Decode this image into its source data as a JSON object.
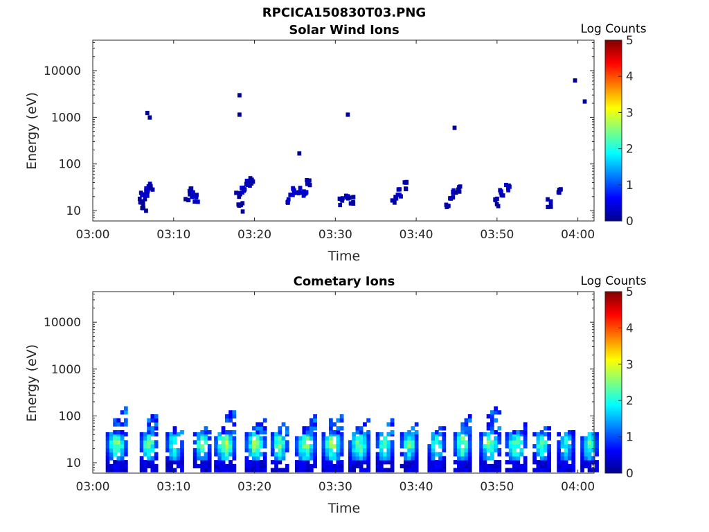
{
  "figure_title": "RPCICA150830T03.PNG",
  "chart_data": [
    {
      "type": "heatmap",
      "title": "Solar Wind Ions",
      "xlabel": "Time",
      "ylabel": "Energy (eV)",
      "xticks": [
        "03:00",
        "03:10",
        "03:20",
        "03:30",
        "03:40",
        "03:50",
        "04:00"
      ],
      "xlim_minutes": [
        0,
        62
      ],
      "yticks": [
        "10",
        "100",
        "1000",
        "10000"
      ],
      "ylim": [
        6,
        45000
      ],
      "yscale": "log",
      "colorbar": {
        "label": "Log Counts",
        "ticks": [
          "0",
          "1",
          "2",
          "3",
          "4",
          "5"
        ],
        "range": [
          0,
          5
        ],
        "colormap": "jet"
      },
      "points": [
        {
          "t": 5.9,
          "e": 20,
          "v": 0.3
        },
        {
          "t": 6.2,
          "e": 25,
          "v": 0.4
        },
        {
          "t": 6.5,
          "e": 30,
          "v": 0.3
        },
        {
          "t": 6.8,
          "e": 35,
          "v": 0.2
        },
        {
          "t": 5.6,
          "e": 15,
          "v": 0.2
        },
        {
          "t": 6.0,
          "e": 12,
          "v": 0.1
        },
        {
          "t": 11.4,
          "e": 20,
          "v": 0.2
        },
        {
          "t": 11.9,
          "e": 25,
          "v": 0.3
        },
        {
          "t": 12.4,
          "e": 18,
          "v": 0.3
        },
        {
          "t": 17.6,
          "e": 20,
          "v": 0.2
        },
        {
          "t": 18.2,
          "e": 28,
          "v": 0.4
        },
        {
          "t": 18.8,
          "e": 35,
          "v": 0.3
        },
        {
          "t": 19.3,
          "e": 45,
          "v": 0.2
        },
        {
          "t": 17.9,
          "e": 12,
          "v": 0.1
        },
        {
          "t": 24.0,
          "e": 18,
          "v": 0.3
        },
        {
          "t": 24.6,
          "e": 25,
          "v": 0.4
        },
        {
          "t": 25.2,
          "e": 30,
          "v": 0.4
        },
        {
          "t": 25.8,
          "e": 22,
          "v": 0.3
        },
        {
          "t": 26.2,
          "e": 38,
          "v": 0.2
        },
        {
          "t": 30.4,
          "e": 15,
          "v": 0.2
        },
        {
          "t": 31.0,
          "e": 22,
          "v": 0.3
        },
        {
          "t": 31.6,
          "e": 18,
          "v": 0.2
        },
        {
          "t": 36.9,
          "e": 18,
          "v": 0.2
        },
        {
          "t": 37.5,
          "e": 25,
          "v": 0.3
        },
        {
          "t": 38.2,
          "e": 35,
          "v": 0.2
        },
        {
          "t": 43.6,
          "e": 15,
          "v": 0.2
        },
        {
          "t": 44.2,
          "e": 22,
          "v": 0.3
        },
        {
          "t": 44.8,
          "e": 30,
          "v": 0.2
        },
        {
          "t": 49.7,
          "e": 15,
          "v": 0.2
        },
        {
          "t": 50.3,
          "e": 22,
          "v": 0.3
        },
        {
          "t": 50.9,
          "e": 30,
          "v": 0.3
        },
        {
          "t": 56.1,
          "e": 15,
          "v": 0.2
        },
        {
          "t": 57.3,
          "e": 25,
          "v": 0.2
        },
        {
          "t": 6.5,
          "e": 1250,
          "v": 0.1
        },
        {
          "t": 6.8,
          "e": 1000,
          "v": 0.1
        },
        {
          "t": 17.9,
          "e": 3000,
          "v": 0.1
        },
        {
          "t": 17.9,
          "e": 1150,
          "v": 0.1
        },
        {
          "t": 25.3,
          "e": 170,
          "v": 0.1
        },
        {
          "t": 31.3,
          "e": 1150,
          "v": 0.1
        },
        {
          "t": 44.5,
          "e": 600,
          "v": 0.1
        },
        {
          "t": 59.4,
          "e": 6200,
          "v": 0.1
        },
        {
          "t": 60.6,
          "e": 2200,
          "v": 0.1
        }
      ]
    },
    {
      "type": "heatmap",
      "title": "Cometary Ions",
      "xlabel": "Time",
      "ylabel": "Energy (eV)",
      "xticks": [
        "03:00",
        "03:10",
        "03:20",
        "03:30",
        "03:40",
        "03:50",
        "04:00"
      ],
      "xlim_minutes": [
        0,
        62
      ],
      "yticks": [
        "10",
        "100",
        "1000",
        "10000"
      ],
      "ylim": [
        6,
        45000
      ],
      "yscale": "log",
      "colorbar": {
        "label": "Log Counts",
        "ticks": [
          "0",
          "1",
          "2",
          "3",
          "4",
          "5"
        ],
        "range": [
          0,
          5
        ],
        "colormap": "jet"
      },
      "bursts": [
        {
          "t": 1.6,
          "w": 2.6,
          "peak": 1.9,
          "top": 150
        },
        {
          "t": 5.8,
          "w": 2.2,
          "peak": 1.9,
          "top": 120
        },
        {
          "t": 9.0,
          "w": 2.2,
          "peak": 1.8,
          "top": 90
        },
        {
          "t": 12.4,
          "w": 2.4,
          "peak": 1.8,
          "top": 70
        },
        {
          "t": 15.0,
          "w": 2.8,
          "peak": 2.1,
          "top": 140
        },
        {
          "t": 18.8,
          "w": 2.6,
          "peak": 2.0,
          "top": 90
        },
        {
          "t": 22.0,
          "w": 2.4,
          "peak": 1.9,
          "top": 80
        },
        {
          "t": 25.0,
          "w": 2.8,
          "peak": 2.0,
          "top": 100
        },
        {
          "t": 28.3,
          "w": 2.8,
          "peak": 2.0,
          "top": 130
        },
        {
          "t": 31.6,
          "w": 2.6,
          "peak": 1.9,
          "top": 90
        },
        {
          "t": 35.0,
          "w": 2.4,
          "peak": 1.9,
          "top": 90
        },
        {
          "t": 38.0,
          "w": 2.2,
          "peak": 1.8,
          "top": 70
        },
        {
          "t": 41.4,
          "w": 2.4,
          "peak": 1.8,
          "top": 70
        },
        {
          "t": 44.6,
          "w": 2.4,
          "peak": 2.0,
          "top": 100
        },
        {
          "t": 47.8,
          "w": 2.6,
          "peak": 1.9,
          "top": 170
        },
        {
          "t": 51.0,
          "w": 2.6,
          "peak": 1.9,
          "top": 70
        },
        {
          "t": 54.4,
          "w": 2.4,
          "peak": 1.8,
          "top": 70
        },
        {
          "t": 57.4,
          "w": 2.2,
          "peak": 1.6,
          "top": 60
        },
        {
          "t": 60.3,
          "w": 2.2,
          "peak": 1.8,
          "top": 40
        }
      ]
    }
  ]
}
